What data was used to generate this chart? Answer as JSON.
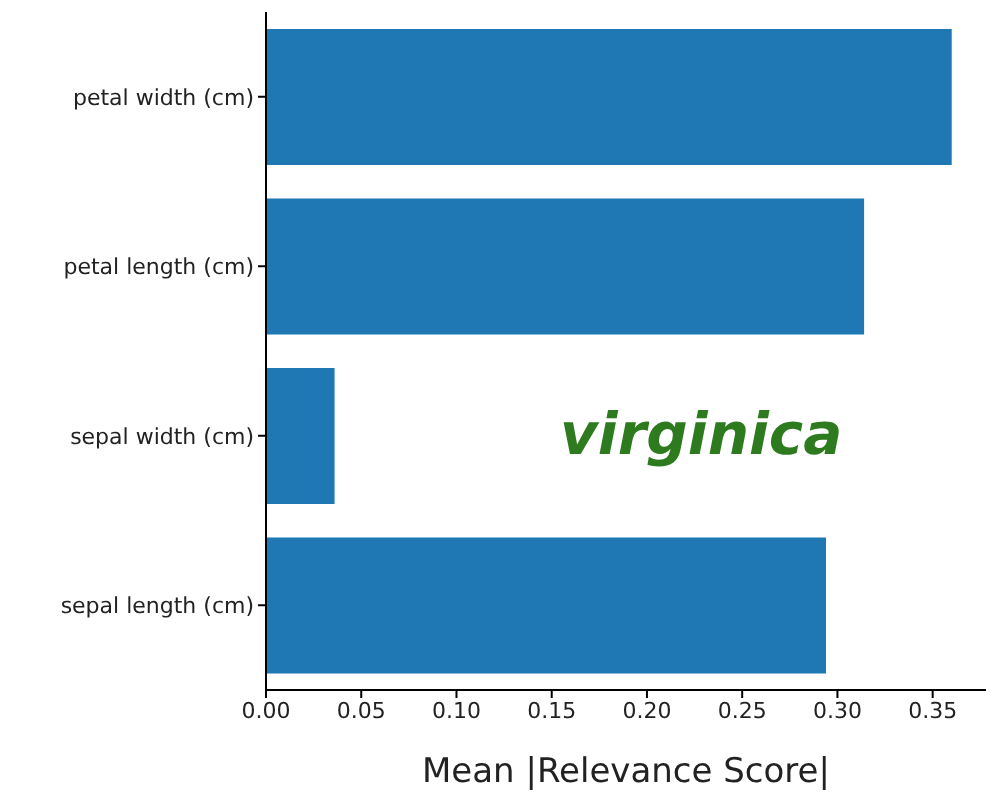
{
  "chart_data": {
    "type": "bar",
    "orientation": "horizontal",
    "xlabel": "Mean |Relevance Score|",
    "categories": [
      "petal width (cm)",
      "petal length (cm)",
      "sepal width (cm)",
      "sepal length (cm)"
    ],
    "values": [
      0.36,
      0.314,
      0.036,
      0.294
    ],
    "color": "#1f77b4",
    "xlim": [
      0,
      0.378
    ],
    "xticks": [
      {
        "value": 0,
        "label": "0.00"
      },
      {
        "value": 0.05,
        "label": "0.05"
      },
      {
        "value": 0.1,
        "label": "0.10"
      },
      {
        "value": 0.15,
        "label": "0.15"
      },
      {
        "value": 0.2,
        "label": "0.20"
      },
      {
        "value": 0.25,
        "label": "0.25"
      },
      {
        "value": 0.3,
        "label": "0.30"
      },
      {
        "value": 0.35,
        "label": "0.35"
      }
    ],
    "annotations": [
      "virginica"
    ],
    "grid": false,
    "legend": false
  }
}
